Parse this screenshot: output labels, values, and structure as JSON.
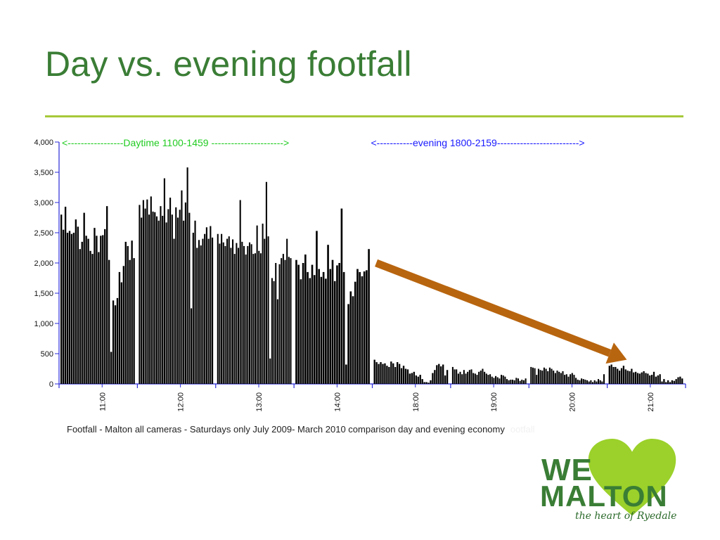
{
  "slide": {
    "title": "Day vs. evening footfall"
  },
  "caption": {
    "text": "Footfall - Malton all cameras - Saturdays only July 2009- March 2010  comparison day and evening economy",
    "ghost_text": "ootfall"
  },
  "logo": {
    "word1": "WE",
    "word2": "MALTON",
    "tagline": "the heart of Ryedale",
    "heart_icon": "heart-icon",
    "colors": {
      "text": "#3a7d35",
      "heart": "#9bd12a"
    }
  },
  "chart_data": {
    "type": "bar",
    "ylim": [
      0,
      4000
    ],
    "yticks": [
      0,
      500,
      1000,
      1500,
      2000,
      2500,
      3000,
      3500,
      4000
    ],
    "ytick_labels": [
      "0",
      "500",
      "1,000",
      "1,500",
      "2,000",
      "2,500",
      "3,000",
      "3,500",
      "4,000"
    ],
    "xticks": [
      "11:00",
      "12:00",
      "13:00",
      "14:00",
      "18:00",
      "19:00",
      "20:00",
      "21:00"
    ],
    "bar_color": "#000000",
    "annotations": {
      "daytime": "<-----------------Daytime 1100-1459 ---------------------->",
      "evening": "<-----------evening 1800-2159------------------------->",
      "daytime_color": "#22cc22",
      "evening_color": "#1a1aff"
    },
    "trend_arrow": {
      "color": "#b8650f",
      "from": [
        18.0,
        2000
      ],
      "to": [
        21.2,
        400
      ]
    },
    "groups": [
      {
        "hour": "11:00",
        "values": [
          2800,
          2550,
          2930,
          2500,
          2530,
          2480,
          2500,
          2720,
          2600,
          2230,
          2350,
          2830,
          2450,
          2400,
          2200,
          2150,
          2580,
          2450,
          2180,
          2450,
          2460,
          2560,
          2940,
          2050,
          530,
          1380,
          1300,
          1420,
          1850,
          1680,
          1950,
          2350,
          2280,
          2050,
          2370,
          2080
        ]
      },
      {
        "hour": "12:00",
        "values": [
          2960,
          2750,
          3040,
          2900,
          3050,
          2800,
          3100,
          2850,
          2840,
          2770,
          2700,
          2940,
          2780,
          3400,
          2670,
          2890,
          3080,
          2800,
          2400,
          2920,
          2750,
          2880,
          3200,
          2700,
          3000,
          3580,
          2830,
          1250,
          2500,
          2700,
          2250,
          2380,
          2290,
          2400,
          2480,
          2590,
          2400,
          2610,
          2420
        ]
      },
      {
        "hour": "13:00",
        "values": [
          2480,
          2320,
          2480,
          2340,
          2280,
          2400,
          2440,
          2250,
          2390,
          2150,
          2330,
          2250,
          3040,
          2350,
          2280,
          2140,
          2280,
          2340,
          2310,
          2150,
          2160,
          2620,
          2200,
          2160,
          2650,
          2400,
          3340,
          2440,
          420,
          1750,
          1700,
          2000,
          1400,
          1980,
          2080,
          2150,
          2050,
          2400,
          2100,
          2080
        ]
      },
      {
        "hour": "14:00",
        "values": [
          2050,
          1970,
          1730,
          2000,
          2140,
          1850,
          1750,
          1970,
          1800,
          2530,
          1900,
          1770,
          1850,
          1740,
          2300,
          1900,
          2050,
          1700,
          1960,
          2000,
          2900,
          1850,
          320,
          1320,
          1530,
          1450,
          1690,
          1900,
          1850,
          1780,
          1860,
          1880,
          2230
        ]
      },
      {
        "hour": "18:00",
        "values": [
          400,
          360,
          330,
          360,
          330,
          340,
          300,
          280,
          370,
          340,
          280,
          360,
          330,
          260,
          300,
          250,
          240,
          170,
          180,
          200,
          140,
          120,
          150,
          80,
          30,
          30,
          20,
          60,
          180,
          230,
          310,
          330,
          290,
          320,
          140,
          230
        ]
      },
      {
        "hour": "19:00",
        "values": [
          280,
          240,
          240,
          170,
          200,
          160,
          230,
          170,
          200,
          230,
          240,
          180,
          170,
          150,
          200,
          220,
          250,
          200,
          170,
          150,
          160,
          120,
          100,
          130,
          110,
          90,
          150,
          140,
          120,
          80,
          60,
          70,
          70,
          60,
          100,
          90,
          50,
          70,
          60,
          90
        ]
      },
      {
        "hour": "20:00",
        "values": [
          280,
          270,
          260,
          150,
          250,
          230,
          220,
          270,
          250,
          210,
          270,
          250,
          220,
          180,
          220,
          200,
          180,
          210,
          150,
          160,
          120,
          160,
          180,
          150,
          100,
          70,
          60,
          90,
          80,
          70,
          60,
          40,
          60,
          30,
          60,
          40,
          80,
          60,
          40,
          160
        ]
      },
      {
        "hour": "21:00",
        "values": [
          300,
          320,
          280,
          280,
          250,
          220,
          260,
          300,
          240,
          220,
          210,
          250,
          190,
          200,
          180,
          170,
          190,
          210,
          180,
          170,
          140,
          150,
          200,
          120,
          140,
          160,
          40,
          80,
          30,
          60,
          30,
          60,
          50,
          80,
          110,
          120,
          90
        ]
      }
    ]
  }
}
